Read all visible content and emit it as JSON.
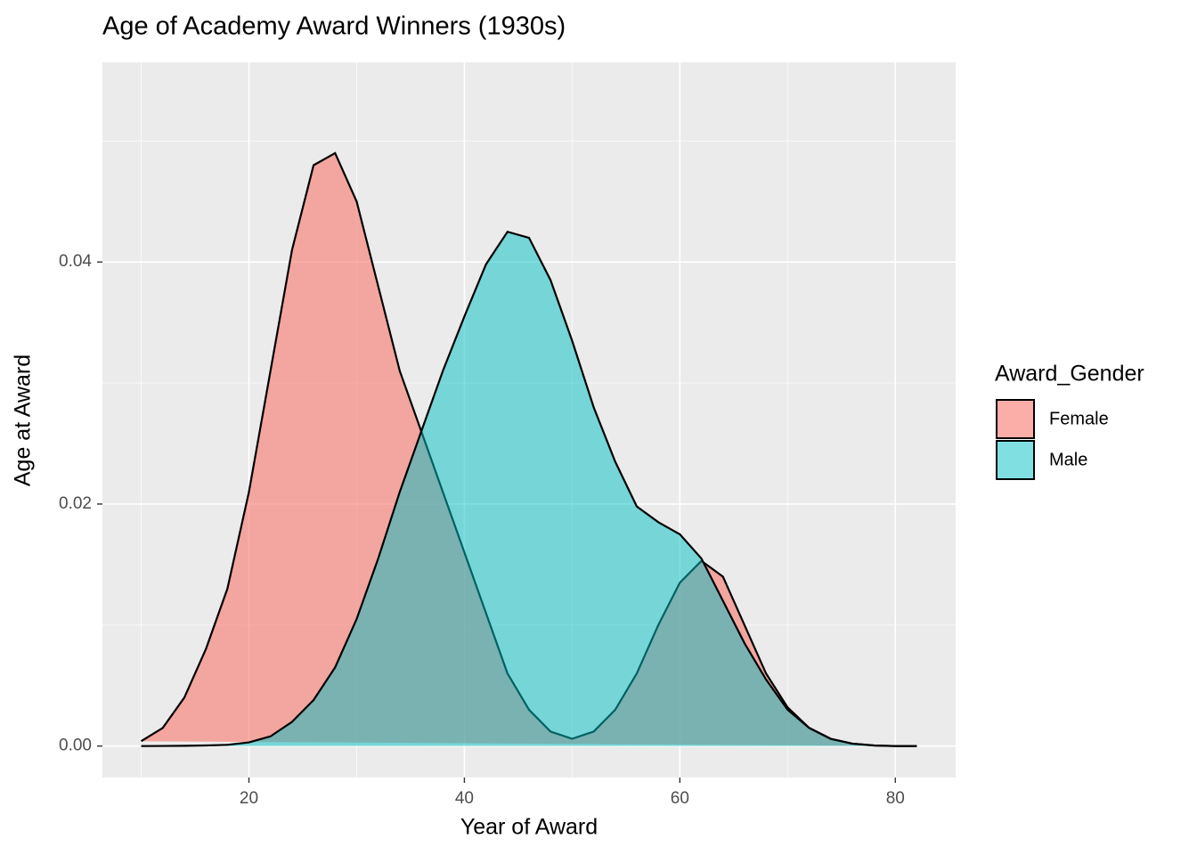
{
  "chart_data": {
    "type": "density",
    "title": "Age of Academy Award Winners (1930s)",
    "x_label": "Year of Award",
    "y_label": "Age at Award",
    "legend_title": "Award_Gender",
    "legend_position": "right",
    "x": [
      10,
      12,
      14,
      16,
      18,
      20,
      22,
      24,
      26,
      28,
      30,
      32,
      34,
      36,
      38,
      40,
      42,
      44,
      46,
      48,
      50,
      52,
      54,
      56,
      58,
      60,
      62,
      64,
      66,
      68,
      70,
      72,
      74,
      76,
      78,
      80,
      82
    ],
    "series": [
      {
        "name": "Female",
        "color": "#F8766D",
        "opacity": 0.6,
        "values": [
          0.0004,
          0.0015,
          0.004,
          0.008,
          0.013,
          0.021,
          0.031,
          0.041,
          0.048,
          0.049,
          0.045,
          0.038,
          0.031,
          0.026,
          0.021,
          0.016,
          0.011,
          0.006,
          0.003,
          0.0012,
          0.0006,
          0.0012,
          0.003,
          0.006,
          0.01,
          0.0135,
          0.0153,
          0.014,
          0.01,
          0.006,
          0.0032,
          0.0015,
          0.0006,
          0.0002,
          5e-05,
          0,
          0
        ]
      },
      {
        "name": "Male",
        "color": "#00BFC4",
        "opacity": 0.5,
        "values": [
          0,
          1e-05,
          2e-05,
          5e-05,
          0.0001,
          0.0003,
          0.0008,
          0.002,
          0.0038,
          0.0065,
          0.0105,
          0.0155,
          0.021,
          0.026,
          0.031,
          0.0355,
          0.0398,
          0.0425,
          0.042,
          0.0385,
          0.0335,
          0.028,
          0.0235,
          0.0198,
          0.0185,
          0.0175,
          0.0155,
          0.012,
          0.0085,
          0.0055,
          0.003,
          0.0015,
          0.0006,
          0.0002,
          5e-05,
          0,
          0
        ]
      }
    ],
    "xlim": [
      6.4,
      85.6
    ],
    "ylim": [
      -0.0026,
      0.0565
    ],
    "xticks": [
      20,
      40,
      60,
      80
    ],
    "yticks": [
      {
        "value": 0,
        "label": "0.00"
      },
      {
        "value": 0.02,
        "label": "0.02"
      },
      {
        "value": 0.04,
        "label": "0.04"
      }
    ],
    "x_minor_grid": [
      10,
      30,
      50,
      70
    ],
    "y_minor_grid": [
      0.01,
      0.03,
      0.05
    ],
    "grid": true
  }
}
